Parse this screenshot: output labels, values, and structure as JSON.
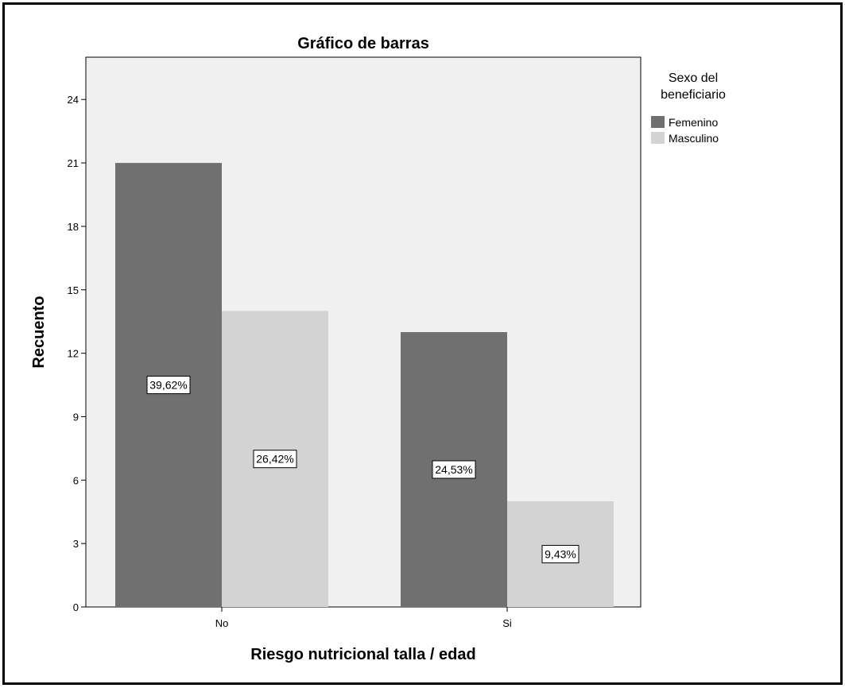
{
  "chart_data": {
    "type": "bar",
    "title": "Gráfico de barras",
    "xlabel": "Riesgo nutricional talla / edad",
    "ylabel": "Recuento",
    "categories": [
      "No",
      "Si"
    ],
    "ylim": [
      0,
      26
    ],
    "yticks": [
      0,
      3,
      6,
      9,
      12,
      15,
      18,
      21,
      24
    ],
    "legend": {
      "title_lines": [
        "Sexo del",
        "beneficiario"
      ],
      "position": "right"
    },
    "series": [
      {
        "name": "Femenino",
        "color": "#707070",
        "values": [
          21,
          13
        ],
        "labels": [
          "39,62%",
          "24,53%"
        ]
      },
      {
        "name": "Masculino",
        "color": "#d3d3d3",
        "values": [
          14,
          5
        ],
        "labels": [
          "26,42%",
          "9,43%"
        ]
      }
    ],
    "plot_background": "#f0f0f0",
    "grid": false
  }
}
